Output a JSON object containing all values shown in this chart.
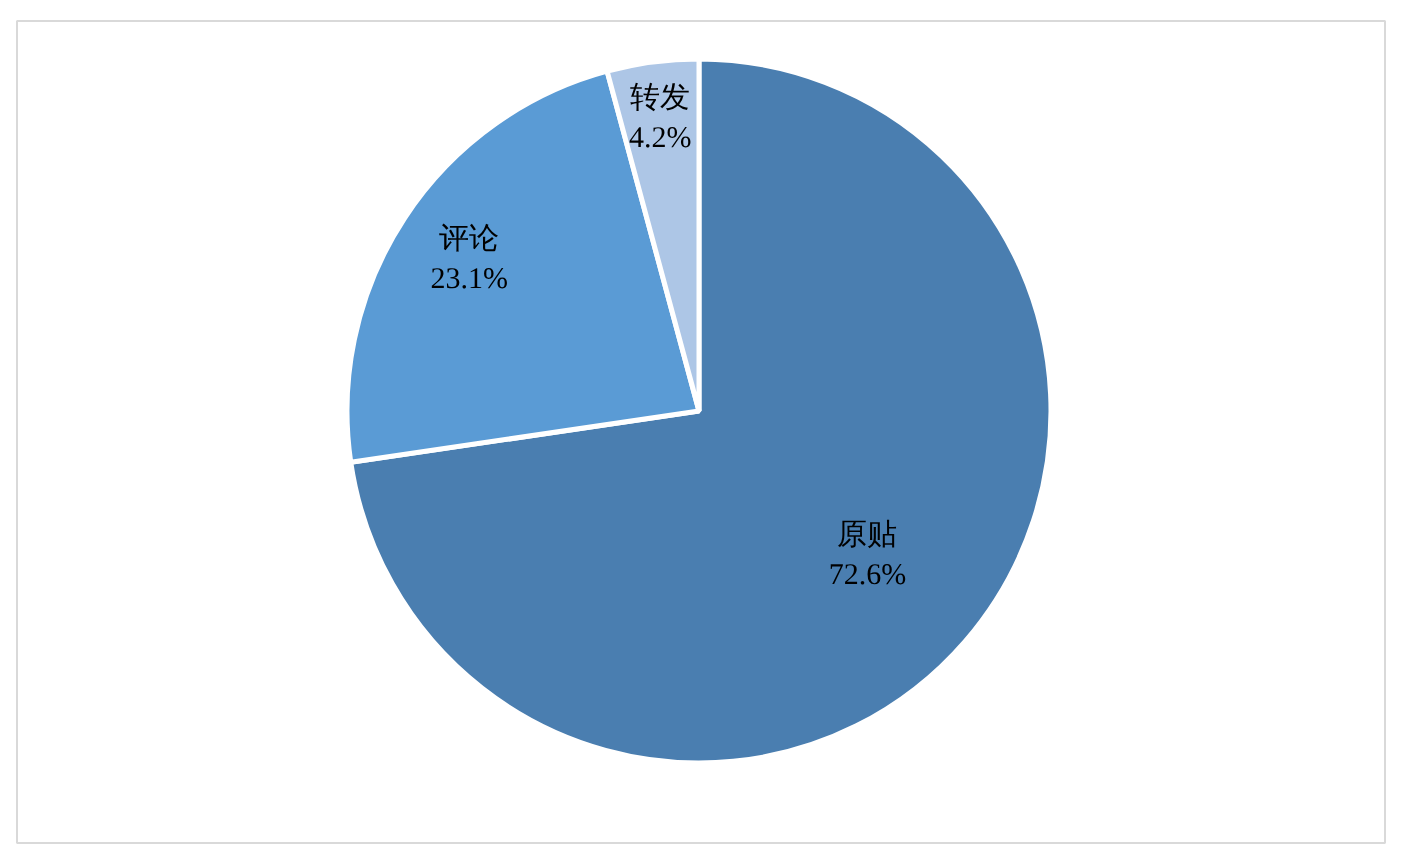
{
  "chart_data": {
    "type": "pie",
    "categories": [
      "原贴",
      "评论",
      "转发"
    ],
    "values": [
      72.6,
      23.1,
      4.2
    ],
    "colors": [
      "#4a7eb0",
      "#5a9bd5",
      "#adc6e6"
    ],
    "value_labels": [
      "72.6%",
      "23.1%",
      "4.2%"
    ]
  }
}
